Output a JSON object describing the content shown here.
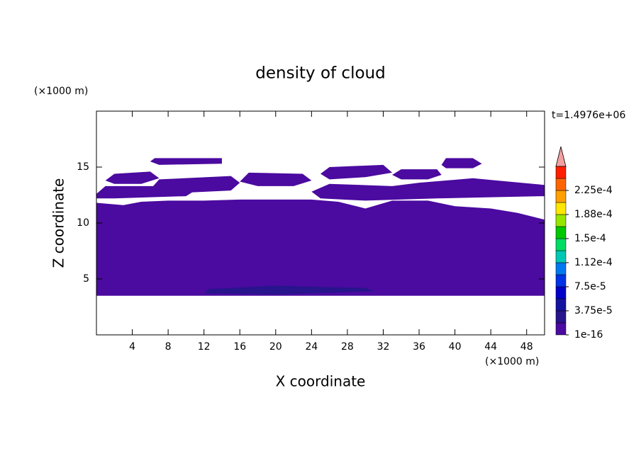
{
  "chart_data": {
    "type": "contour",
    "title": "density of cloud",
    "x_label": "X coordinate",
    "y_label": "Z coordinate",
    "x_unit": "(×1000 m)",
    "y_unit": "(×1000 m)",
    "time_label": "t=1.4976e+06",
    "xlim": [
      0,
      50
    ],
    "ylim": [
      0,
      20
    ],
    "xticks": [
      4,
      8,
      12,
      16,
      20,
      24,
      28,
      32,
      36,
      40,
      44,
      48
    ],
    "yticks": [
      5,
      10,
      15
    ],
    "colorbar": {
      "lim": [
        0,
        0.0002625
      ],
      "colors": [
        "#4b0aa0",
        "#28148c",
        "#1414a0",
        "#0000c8",
        "#0032e6",
        "#0078f0",
        "#00c8b4",
        "#00dc64",
        "#00c800",
        "#96e600",
        "#ffe600",
        "#ffa000",
        "#ff6400",
        "#ff1e00"
      ],
      "extend_color": "#f4a0a0",
      "ticks": [
        {
          "value": 1e-16,
          "label": "1e-16"
        },
        {
          "value": 3.75e-05,
          "label": "3.75e-5"
        },
        {
          "value": 7.5e-05,
          "label": "7.5e-5"
        },
        {
          "value": 0.0001125,
          "label": "1.12e-4"
        },
        {
          "value": 0.00015,
          "label": "1.5e-4"
        },
        {
          "value": 0.0001875,
          "label": "1.88e-4"
        },
        {
          "value": 0.000225,
          "label": "2.25e-4"
        }
      ]
    },
    "contours": [
      {
        "level": 0,
        "points": [
          [
            0,
            3.5
          ],
          [
            50,
            3.5
          ],
          [
            50,
            10.3
          ],
          [
            47,
            10.9
          ],
          [
            44,
            11.3
          ],
          [
            40,
            11.5
          ],
          [
            37,
            12.0
          ],
          [
            33,
            12.0
          ],
          [
            30,
            11.3
          ],
          [
            27,
            11.9
          ],
          [
            24,
            12.1
          ],
          [
            20,
            12.1
          ],
          [
            16,
            12.1
          ],
          [
            12,
            12.0
          ],
          [
            8,
            12.0
          ],
          [
            5,
            11.9
          ],
          [
            3,
            11.6
          ],
          [
            0,
            11.8
          ]
        ]
      },
      {
        "level": 0,
        "points": [
          [
            0,
            12.6
          ],
          [
            1,
            13.3
          ],
          [
            10,
            13.3
          ],
          [
            11,
            12.9
          ],
          [
            10,
            12.4
          ],
          [
            2,
            12.2
          ],
          [
            0,
            12.2
          ]
        ]
      },
      {
        "level": 0,
        "points": [
          [
            6,
            13.0
          ],
          [
            7,
            13.9
          ],
          [
            15,
            14.2
          ],
          [
            16,
            13.6
          ],
          [
            15,
            12.9
          ],
          [
            7,
            12.6
          ]
        ]
      },
      {
        "level": 0,
        "points": [
          [
            1,
            13.8
          ],
          [
            2,
            14.4
          ],
          [
            6,
            14.6
          ],
          [
            7,
            14.0
          ],
          [
            5,
            13.5
          ],
          [
            2,
            13.5
          ]
        ]
      },
      {
        "level": 0,
        "points": [
          [
            16,
            13.7
          ],
          [
            17,
            14.5
          ],
          [
            23,
            14.4
          ],
          [
            24,
            13.8
          ],
          [
            22,
            13.3
          ],
          [
            18,
            13.3
          ]
        ]
      },
      {
        "level": 0,
        "points": [
          [
            24,
            12.8
          ],
          [
            26,
            13.5
          ],
          [
            33,
            13.3
          ],
          [
            36,
            13.6
          ],
          [
            42,
            14.0
          ],
          [
            50,
            13.4
          ],
          [
            50,
            12.4
          ],
          [
            44,
            12.3
          ],
          [
            38,
            12.2
          ],
          [
            30,
            12.0
          ],
          [
            25,
            12.2
          ]
        ]
      },
      {
        "level": 0,
        "points": [
          [
            25,
            14.4
          ],
          [
            26,
            15.0
          ],
          [
            32,
            15.2
          ],
          [
            33,
            14.5
          ],
          [
            30,
            14.1
          ],
          [
            26,
            13.9
          ]
        ]
      },
      {
        "level": 0,
        "points": [
          [
            6,
            15.5
          ],
          [
            6.5,
            15.8
          ],
          [
            14,
            15.8
          ],
          [
            14,
            15.3
          ],
          [
            7,
            15.2
          ]
        ]
      },
      {
        "level": 0,
        "points": [
          [
            38.5,
            15.2
          ],
          [
            39,
            15.8
          ],
          [
            42,
            15.8
          ],
          [
            43,
            15.3
          ],
          [
            42,
            14.9
          ],
          [
            39,
            14.9
          ]
        ]
      },
      {
        "level": 0,
        "points": [
          [
            33,
            14.3
          ],
          [
            34,
            14.8
          ],
          [
            38,
            14.8
          ],
          [
            38.5,
            14.3
          ],
          [
            37,
            13.9
          ],
          [
            34,
            13.9
          ]
        ]
      },
      {
        "level": 0,
        "points": [
          [
            0,
            10.8
          ],
          [
            0.5,
            11.3
          ],
          [
            2,
            11.3
          ],
          [
            2.5,
            10.9
          ],
          [
            1.5,
            10.6
          ],
          [
            0,
            10.6
          ]
        ]
      },
      {
        "level": 1,
        "points": [
          [
            12,
            3.7
          ],
          [
            12.5,
            4.1
          ],
          [
            20,
            4.4
          ],
          [
            24,
            4.3
          ],
          [
            30,
            4.2
          ],
          [
            31,
            3.9
          ],
          [
            20,
            3.6
          ]
        ]
      }
    ]
  }
}
